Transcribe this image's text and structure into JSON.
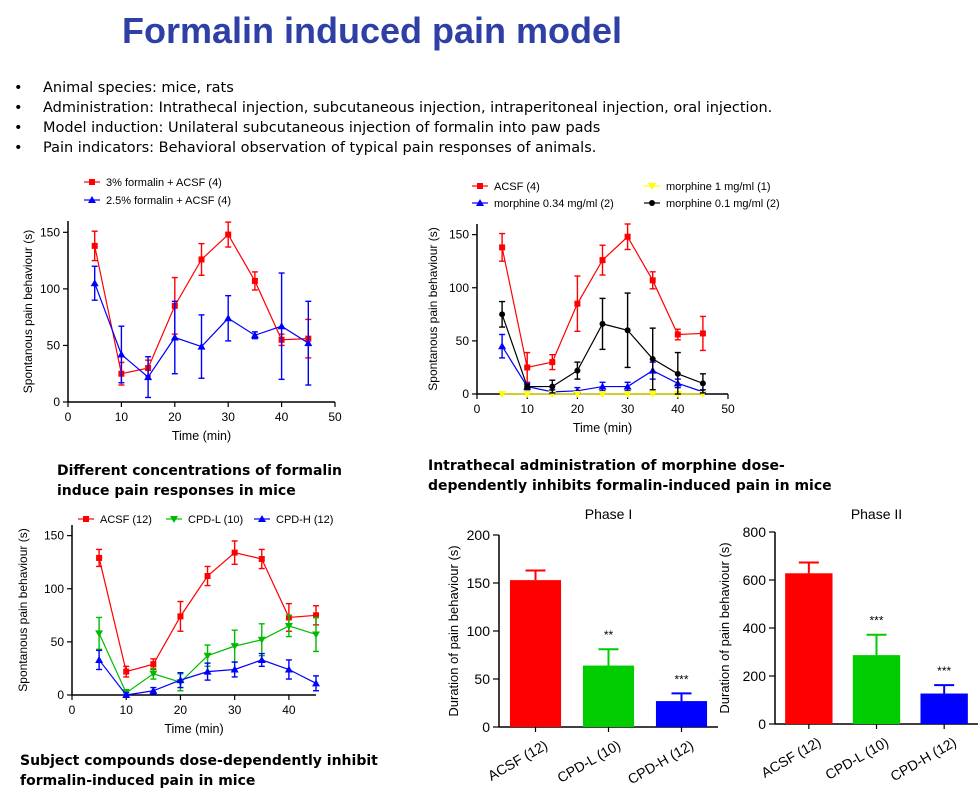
{
  "title": "Formalin induced pain model",
  "bullets": [
    "Animal species: mice, rats",
    "Administration: Intrathecal injection, subcutaneous injection, intraperitoneal injection, oral injection.",
    "Model induction: Unilateral subcutaneous injection of formalin into paw pads",
    "Pain indicators: Behavioral observation of typical pain responses of animals."
  ],
  "captions": {
    "c1_line1": "Different concentrations of formalin",
    "c1_line2": "induce pain responses in mice",
    "c2_line1": "Intrathecal administration of morphine dose-",
    "c2_line2": "dependently inhibits formalin-induced pain in mice",
    "c3_line1": "Subject compounds dose-dependently inhibit",
    "c3_line2": "formalin-induced pain in mice"
  },
  "chart_data": [
    {
      "type": "line",
      "xlabel": "Time (min)",
      "ylabel": "Spontanous pain behaviour (s)",
      "xlim": [
        0,
        50
      ],
      "ylim": [
        0,
        160
      ],
      "xticks": [
        0,
        10,
        20,
        30,
        40,
        50
      ],
      "yticks": [
        0,
        50,
        100,
        150
      ],
      "legend_position": "top",
      "series": [
        {
          "name": "3% formalin + ACSF (4)",
          "color": "#ff0000",
          "marker": "square",
          "x": [
            5,
            10,
            15,
            20,
            25,
            30,
            35,
            40,
            45
          ],
          "y": [
            138,
            25,
            30,
            85,
            126,
            148,
            107,
            55,
            56
          ],
          "err": [
            13,
            10,
            7,
            25,
            14,
            11,
            8,
            5,
            17
          ]
        },
        {
          "name": "2.5% formalin + ACSF (4)",
          "color": "#0000ff",
          "marker": "triangle",
          "x": [
            5,
            10,
            15,
            20,
            25,
            30,
            35,
            40,
            45
          ],
          "y": [
            105,
            42,
            22,
            57,
            49,
            74,
            59,
            67,
            52
          ],
          "err": [
            15,
            25,
            18,
            32,
            28,
            20,
            3,
            47,
            37
          ]
        }
      ]
    },
    {
      "type": "line",
      "xlabel": "Time (min)",
      "ylabel": "Spontanous pain behaviour (s)",
      "xlim": [
        0,
        50
      ],
      "ylim": [
        0,
        160
      ],
      "xticks": [
        0,
        10,
        20,
        30,
        40,
        50
      ],
      "yticks": [
        0,
        50,
        100,
        150
      ],
      "legend_position": "top",
      "series": [
        {
          "name": "ACSF (4)",
          "color": "#ff0000",
          "marker": "square",
          "x": [
            5,
            10,
            15,
            20,
            25,
            30,
            35,
            40,
            45
          ],
          "y": [
            138,
            25,
            30,
            85,
            126,
            148,
            107,
            56,
            57
          ],
          "err": [
            13,
            14,
            7,
            26,
            14,
            12,
            8,
            5,
            16
          ]
        },
        {
          "name": "morphine 0.34 mg/ml (2)",
          "color": "#0000ff",
          "marker": "triangle",
          "x": [
            5,
            10,
            15,
            20,
            25,
            30,
            35,
            40,
            45
          ],
          "y": [
            45,
            7,
            2,
            3,
            7,
            7,
            22,
            10,
            2
          ],
          "err": [
            11,
            3,
            2,
            3,
            4,
            4,
            8,
            4,
            2
          ]
        },
        {
          "name": "morphine 1 mg/ml (1)",
          "color": "#ffff00",
          "marker": "triangle-down",
          "x": [
            5,
            10,
            15,
            20,
            25,
            30,
            35,
            40,
            45
          ],
          "y": [
            0,
            0,
            0,
            0,
            0,
            0,
            0,
            0,
            0
          ],
          "err": [
            0,
            0,
            0,
            0,
            0,
            0,
            0,
            0,
            0
          ]
        },
        {
          "name": "morphine 0.1 mg/ml (2)",
          "color": "#000000",
          "marker": "circle",
          "x": [
            5,
            10,
            15,
            20,
            25,
            30,
            35,
            40,
            45
          ],
          "y": [
            75,
            7,
            7,
            22,
            66,
            60,
            33,
            19,
            10
          ],
          "err": [
            12,
            2,
            6,
            8,
            24,
            35,
            29,
            20,
            9
          ]
        }
      ]
    },
    {
      "type": "line",
      "xlabel": "Time (min)",
      "ylabel": "Spontanous pain behaviour (s)",
      "xlim": [
        0,
        45
      ],
      "ylim": [
        0,
        160
      ],
      "xticks": [
        0,
        10,
        20,
        30,
        40
      ],
      "yticks": [
        0,
        50,
        100,
        150
      ],
      "legend_position": "top",
      "series": [
        {
          "name": "ACSF (12)",
          "color": "#ff0000",
          "marker": "square",
          "x": [
            5,
            10,
            15,
            20,
            25,
            30,
            35,
            40,
            45
          ],
          "y": [
            129,
            22,
            29,
            74,
            112,
            134,
            128,
            73,
            75
          ],
          "err": [
            8,
            5,
            5,
            14,
            9,
            11,
            9,
            13,
            9
          ]
        },
        {
          "name": "CPD-L (10)",
          "color": "#00bb00",
          "marker": "triangle-down",
          "x": [
            5,
            10,
            15,
            20,
            25,
            30,
            35,
            40,
            45
          ],
          "y": [
            58,
            2,
            20,
            12,
            37,
            46,
            52,
            65,
            57
          ],
          "err": [
            15,
            3,
            5,
            8,
            10,
            15,
            15,
            10,
            16
          ]
        },
        {
          "name": "CPD-H  (12)",
          "color": "#0000ff",
          "marker": "triangle",
          "x": [
            5,
            10,
            15,
            20,
            25,
            30,
            35,
            40,
            45
          ],
          "y": [
            33,
            0,
            4,
            14,
            22,
            24,
            33,
            24,
            11
          ],
          "err": [
            9,
            2,
            3,
            7,
            8,
            7,
            6,
            9,
            7
          ]
        }
      ]
    },
    {
      "type": "bar",
      "title": "Phase I",
      "ylabel": "Duration of pain behaviour (s)",
      "ylim": [
        0,
        200
      ],
      "yticks": [
        0,
        50,
        100,
        150,
        200
      ],
      "categories": [
        "ACSF (12)",
        "CPD-L (10)",
        "CPD-H (12)"
      ],
      "values": [
        153,
        64,
        27
      ],
      "err": [
        10,
        17,
        8
      ],
      "colors": [
        "#ff0000",
        "#00cc00",
        "#0000ff"
      ],
      "annotations": [
        "",
        "**",
        "***"
      ]
    },
    {
      "type": "bar",
      "title": "Phase II",
      "ylabel": "Duration of pain behaviour (s)",
      "ylim": [
        0,
        800
      ],
      "yticks": [
        0,
        200,
        400,
        600,
        800
      ],
      "categories": [
        "ACSF (12)",
        "CPD-L (10)",
        "CPD-H (12)"
      ],
      "values": [
        628,
        287,
        127
      ],
      "err": [
        45,
        85,
        35
      ],
      "colors": [
        "#ff0000",
        "#00cc00",
        "#0000ff"
      ],
      "annotations": [
        "",
        "***",
        "***"
      ]
    }
  ]
}
